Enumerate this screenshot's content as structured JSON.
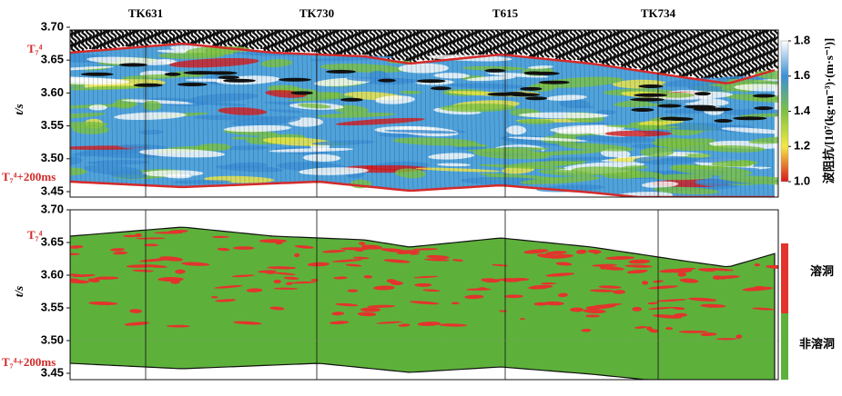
{
  "chart_data": [
    {
      "type": "impedance-section",
      "wells": [
        "TK631",
        "TK730",
        "T615",
        "TK734"
      ],
      "ylabel": "t/s",
      "ylim": [
        3.45,
        3.7
      ],
      "yticks": [
        3.45,
        {
          "value": 3.5,
          "label": "3.50"
        },
        3.55,
        {
          "value": 3.6,
          "label": "3.60"
        },
        3.65,
        {
          "value": 3.7,
          "label": "3.70"
        }
      ],
      "horizons": {
        "top": "T₇⁴",
        "bottom": "T₇⁴+200ms"
      },
      "colorbar": {
        "label": "波阻抗/[10⁷(kg·m⁻³)·(m·s⁻¹)]",
        "lim": [
          1.0,
          1.8
        ],
        "ticks": [
          {
            "value": 1,
            "label": "1.0"
          },
          1.2,
          1.4,
          1.6,
          {
            "value": 1.8,
            "label": "1.8"
          }
        ],
        "colors": [
          "#d7191c",
          "#f4e842",
          "#7cc242",
          "#3b8fd6",
          "#ffffff"
        ]
      }
    },
    {
      "type": "classification",
      "ylabel": "t/s",
      "ylim": [
        3.45,
        3.7
      ],
      "yticks": [
        3.45,
        {
          "value": 3.5,
          "label": "3.50"
        },
        3.55,
        {
          "value": 3.6,
          "label": "3.60"
        },
        3.65,
        {
          "value": 3.7,
          "label": "3.70"
        }
      ],
      "horizons": {
        "top": "T₇⁴",
        "bottom": "T₇⁴+200ms"
      },
      "series": [
        {
          "name": "溶洞",
          "color": "#e2342d"
        },
        {
          "name": "非溶洞",
          "color": "#5db13a"
        }
      ]
    }
  ]
}
